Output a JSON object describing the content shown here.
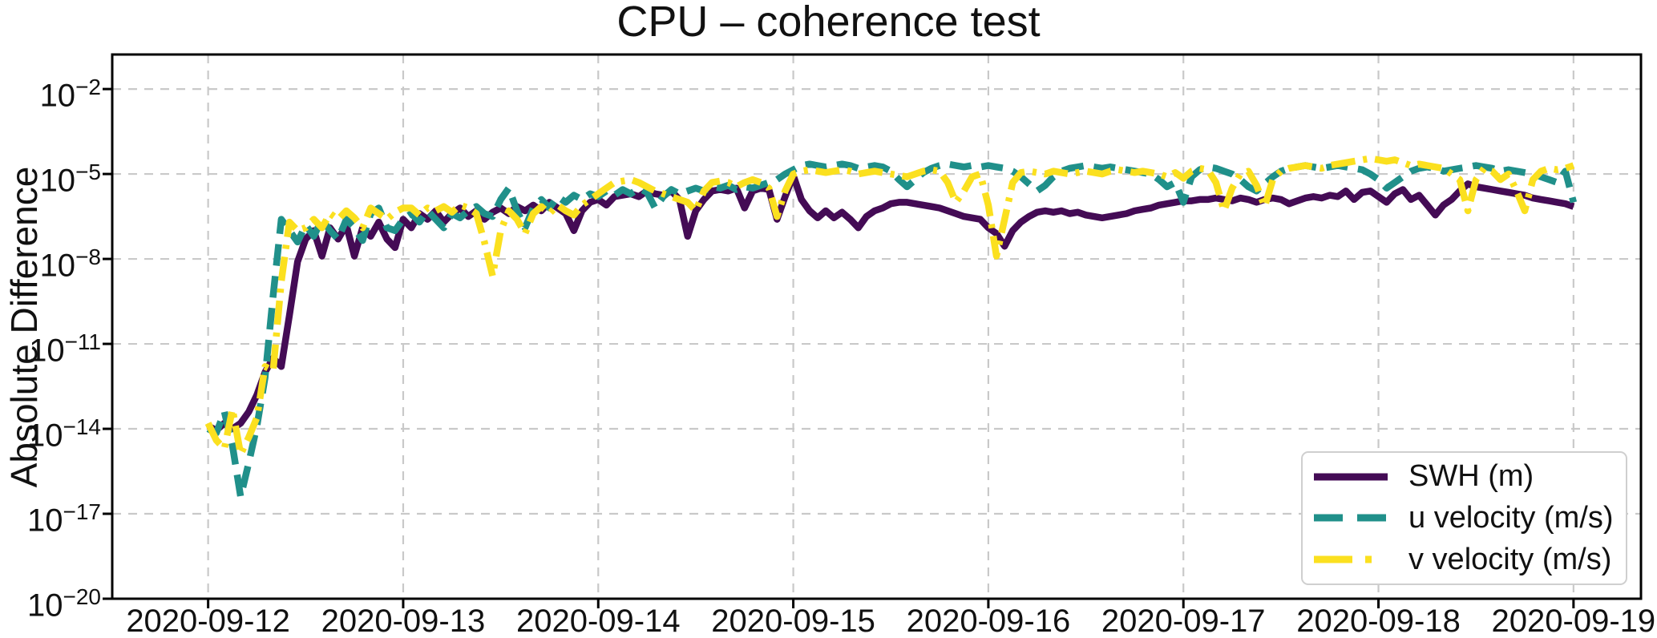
{
  "figure": {
    "background": "#ffffff"
  },
  "axes": {
    "ylabel": "Absolute Difference",
    "y_scale": "log10",
    "y_tick_base": "10",
    "y_tick_exponents": [
      -2,
      -5,
      -8,
      -11,
      -14,
      -17,
      -20
    ],
    "x_tick_labels": [
      "2020-09-12",
      "2020-09-13",
      "2020-09-14",
      "2020-09-15",
      "2020-09-16",
      "2020-09-17",
      "2020-09-18",
      "2020-09-19"
    ],
    "x_tick_hours": [
      0,
      24,
      48,
      72,
      96,
      120,
      144,
      168
    ],
    "x_domain_hours": [
      -11.8,
      176.3
    ],
    "y_domain_exponents": [
      -0.78,
      -20
    ],
    "grid_color": "#c9c9c9",
    "spine_color": "#000000"
  },
  "legend": {
    "position": "lower right",
    "items": [
      {
        "label": "SWH (m)",
        "color": "#440b55",
        "dash": "solid"
      },
      {
        "label": "u velocity (m/s)",
        "color": "#20908a",
        "dash": "dashed"
      },
      {
        "label": "v velocity (m/s)",
        "color": "#fbe01f",
        "dash": "dashdot"
      }
    ]
  },
  "chart_data": {
    "type": "line",
    "title": "CPU – coherence test",
    "xlabel": "",
    "ylabel": "Absolute Difference",
    "y_scale": "log10",
    "ylim_exponents": [
      -20,
      -2
    ],
    "grid": "dashed",
    "legend_position": "lower right",
    "x_start": "2020-09-12 00:00",
    "x_step_hours": 1,
    "x_end": "2020-09-19 00:00",
    "series": [
      {
        "name": "SWH (m)",
        "color": "#440b55",
        "dash": "solid",
        "values_log10": [
          -13.9,
          -14.05,
          -13.8,
          -14.0,
          -13.8,
          -13.4,
          -12.8,
          -12.0,
          -11.5,
          -11.8,
          -10.0,
          -8.1,
          -7.3,
          -7.0,
          -7.9,
          -6.9,
          -7.3,
          -6.8,
          -7.9,
          -6.9,
          -7.2,
          -6.7,
          -7.3,
          -7.6,
          -6.6,
          -6.9,
          -6.4,
          -6.6,
          -6.3,
          -6.7,
          -6.4,
          -6.2,
          -6.5,
          -6.3,
          -6.6,
          -6.35,
          -6.2,
          -6.4,
          -6.15,
          -6.3,
          -6.1,
          -6.3,
          -6.0,
          -6.2,
          -6.4,
          -7.0,
          -6.3,
          -6.0,
          -5.9,
          -6.1,
          -5.8,
          -5.75,
          -5.7,
          -5.8,
          -5.6,
          -5.7,
          -5.75,
          -5.6,
          -5.9,
          -7.2,
          -6.3,
          -5.9,
          -5.6,
          -5.55,
          -5.6,
          -5.5,
          -6.2,
          -5.6,
          -5.5,
          -5.55,
          -6.6,
          -5.8,
          -5.05,
          -5.9,
          -6.3,
          -6.55,
          -6.3,
          -6.55,
          -6.35,
          -6.6,
          -6.9,
          -6.5,
          -6.3,
          -6.2,
          -6.05,
          -6.0,
          -6.0,
          -6.05,
          -6.1,
          -6.15,
          -6.2,
          -6.3,
          -6.4,
          -6.5,
          -6.55,
          -6.6,
          -6.9,
          -7.1,
          -7.55,
          -7.0,
          -6.7,
          -6.5,
          -6.35,
          -6.3,
          -6.35,
          -6.3,
          -6.4,
          -6.35,
          -6.45,
          -6.5,
          -6.55,
          -6.5,
          -6.45,
          -6.4,
          -6.3,
          -6.25,
          -6.2,
          -6.1,
          -6.05,
          -6.0,
          -5.95,
          -5.95,
          -5.9,
          -5.9,
          -5.85,
          -5.9,
          -5.95,
          -5.85,
          -5.9,
          -6.0,
          -5.9,
          -5.85,
          -5.9,
          -6.05,
          -5.95,
          -5.85,
          -5.8,
          -5.85,
          -5.75,
          -5.8,
          -5.6,
          -5.9,
          -5.65,
          -5.6,
          -5.8,
          -6.0,
          -5.7,
          -5.55,
          -5.9,
          -5.75,
          -6.1,
          -6.45,
          -6.1,
          -5.9,
          -5.6,
          -5.35,
          -5.45,
          -5.5,
          -5.55,
          -5.6,
          -5.65,
          -5.7,
          -5.75,
          -5.85,
          -5.9,
          -5.95,
          -6.0,
          -6.05,
          -6.15
        ]
      },
      {
        "name": "u velocity (m/s)",
        "color": "#20908a",
        "dash": "dashed",
        "values_log10": [
          -14.0,
          -14.15,
          -13.4,
          -14.6,
          -16.4,
          -15.2,
          -13.9,
          -12.2,
          -9.3,
          -6.6,
          -7.0,
          -7.4,
          -6.8,
          -7.2,
          -6.6,
          -7.0,
          -7.3,
          -6.6,
          -6.9,
          -7.35,
          -6.4,
          -6.2,
          -6.9,
          -7.0,
          -6.6,
          -6.4,
          -6.7,
          -6.3,
          -6.6,
          -6.9,
          -6.4,
          -6.55,
          -6.3,
          -6.15,
          -6.4,
          -6.5,
          -5.9,
          -5.5,
          -6.3,
          -6.9,
          -6.2,
          -5.9,
          -6.2,
          -5.8,
          -6.0,
          -5.75,
          -5.9,
          -5.7,
          -5.8,
          -5.6,
          -5.75,
          -5.55,
          -5.7,
          -5.5,
          -5.65,
          -6.2,
          -5.8,
          -5.55,
          -5.7,
          -5.6,
          -5.5,
          -5.6,
          -5.45,
          -5.5,
          -5.4,
          -5.55,
          -5.45,
          -5.5,
          -5.4,
          -5.3,
          -5.2,
          -5.0,
          -4.85,
          -4.7,
          -4.65,
          -4.7,
          -4.75,
          -4.7,
          -4.65,
          -4.7,
          -4.8,
          -4.75,
          -4.7,
          -4.75,
          -4.9,
          -5.2,
          -5.45,
          -5.2,
          -4.95,
          -4.8,
          -4.7,
          -4.65,
          -4.7,
          -4.75,
          -4.7,
          -4.75,
          -4.7,
          -4.75,
          -4.8,
          -4.9,
          -5.1,
          -5.35,
          -5.6,
          -5.4,
          -5.1,
          -4.9,
          -4.8,
          -4.75,
          -4.7,
          -4.75,
          -4.8,
          -4.75,
          -4.8,
          -4.85,
          -4.9,
          -4.95,
          -5.0,
          -5.2,
          -5.45,
          -5.3,
          -6.0,
          -5.1,
          -4.85,
          -4.75,
          -4.8,
          -4.9,
          -5.0,
          -5.2,
          -5.45,
          -5.6,
          -5.35,
          -5.1,
          -4.9,
          -4.8,
          -4.75,
          -4.7,
          -4.75,
          -4.8,
          -4.75,
          -4.7,
          -4.75,
          -4.8,
          -4.85,
          -5.0,
          -5.2,
          -5.5,
          -5.3,
          -5.1,
          -4.9,
          -4.8,
          -4.75,
          -4.8,
          -4.9,
          -4.85,
          -4.8,
          -4.75,
          -4.7,
          -4.75,
          -4.8,
          -4.9,
          -4.85,
          -4.9,
          -4.95,
          -5.0,
          -5.1,
          -5.2,
          -5.3,
          -4.9,
          -6.0
        ]
      },
      {
        "name": "v velocity (m/s)",
        "color": "#fbe01f",
        "dash": "dashdot",
        "values_log10": [
          -13.8,
          -14.4,
          -14.7,
          -13.3,
          -14.9,
          -14.3,
          -13.6,
          -11.8,
          -11.95,
          -8.8,
          -6.7,
          -7.0,
          -6.9,
          -6.6,
          -6.9,
          -6.4,
          -6.6,
          -6.3,
          -6.55,
          -6.9,
          -6.2,
          -6.4,
          -6.6,
          -6.35,
          -6.2,
          -6.2,
          -6.45,
          -6.2,
          -6.3,
          -6.15,
          -6.35,
          -6.1,
          -6.2,
          -6.4,
          -7.4,
          -8.6,
          -7.0,
          -6.3,
          -6.6,
          -7.1,
          -6.4,
          -6.15,
          -6.4,
          -6.1,
          -6.3,
          -6.45,
          -6.1,
          -5.9,
          -5.7,
          -5.5,
          -5.3,
          -5.25,
          -5.2,
          -5.3,
          -5.45,
          -5.6,
          -5.7,
          -5.8,
          -5.9,
          -6.0,
          -6.3,
          -5.6,
          -5.3,
          -5.25,
          -5.3,
          -5.45,
          -5.3,
          -5.2,
          -5.3,
          -5.5,
          -6.5,
          -5.6,
          -5.0,
          -4.9,
          -4.85,
          -4.9,
          -4.95,
          -4.9,
          -4.85,
          -4.9,
          -5.0,
          -4.95,
          -4.9,
          -4.95,
          -5.0,
          -5.05,
          -5.1,
          -5.0,
          -4.9,
          -4.85,
          -4.9,
          -5.3,
          -6.0,
          -5.6,
          -5.1,
          -5.0,
          -6.1,
          -7.9,
          -6.6,
          -5.3,
          -4.95,
          -4.9,
          -4.95,
          -5.0,
          -4.9,
          -4.95,
          -5.0,
          -4.95,
          -4.9,
          -4.95,
          -5.0,
          -4.9,
          -4.85,
          -4.9,
          -4.95,
          -4.9,
          -4.95,
          -5.0,
          -5.1,
          -4.95,
          -5.15,
          -4.9,
          -4.8,
          -4.85,
          -5.3,
          -6.3,
          -5.5,
          -5.0,
          -4.9,
          -5.4,
          -6.15,
          -5.2,
          -4.9,
          -4.8,
          -4.75,
          -4.7,
          -4.75,
          -4.8,
          -4.7,
          -4.65,
          -4.6,
          -4.55,
          -4.5,
          -4.45,
          -4.5,
          -4.55,
          -4.5,
          -4.6,
          -4.7,
          -4.65,
          -4.7,
          -4.75,
          -4.8,
          -5.0,
          -5.2,
          -6.3,
          -5.2,
          -4.8,
          -4.9,
          -5.2,
          -5.0,
          -5.6,
          -6.3,
          -5.2,
          -4.9,
          -4.8,
          -4.85,
          -4.8,
          -4.7
        ]
      }
    ]
  }
}
